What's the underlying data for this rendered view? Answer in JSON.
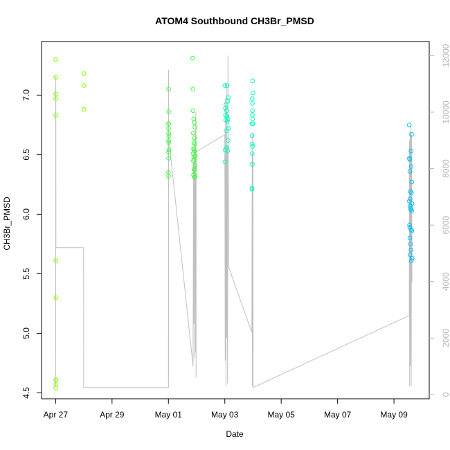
{
  "chart_data": {
    "type": "scatter",
    "title": "ATOM4 Southbound CH3Br_PMSD",
    "xlabel": "Date",
    "ylabel": "CH3Br_PMSD",
    "x_axis": {
      "kind": "date",
      "range": [
        "2016-04-26T12:00",
        "2016-05-10T06:00"
      ],
      "ticks": [
        {
          "value": "2016-04-27",
          "label": "Apr 27"
        },
        {
          "value": "2016-04-29",
          "label": "Apr 29"
        },
        {
          "value": "2016-05-01",
          "label": "May 01"
        },
        {
          "value": "2016-05-03",
          "label": "May 03"
        },
        {
          "value": "2016-05-05",
          "label": "May 05"
        },
        {
          "value": "2016-05-07",
          "label": "May 07"
        },
        {
          "value": "2016-05-09",
          "label": "May 09"
        }
      ]
    },
    "y_axis": {
      "range": [
        4.45,
        7.45
      ],
      "ticks": [
        {
          "value": 4.5,
          "label": "4.5"
        },
        {
          "value": 5.0,
          "label": "5.0"
        },
        {
          "value": 5.5,
          "label": "5.5"
        },
        {
          "value": 6.0,
          "label": "6.0"
        },
        {
          "value": 6.5,
          "label": "6.5"
        },
        {
          "value": 7.0,
          "label": "7.0"
        }
      ]
    },
    "y2_axis": {
      "range": [
        -150,
        12500
      ],
      "color": "#b3b3b3",
      "ticks": [
        {
          "value": 0,
          "label": "0"
        },
        {
          "value": 2000,
          "label": "2000"
        },
        {
          "value": 4000,
          "label": "4000"
        },
        {
          "value": 6000,
          "label": "6000"
        },
        {
          "value": 8000,
          "label": "8000"
        },
        {
          "value": 10000,
          "label": "10000"
        },
        {
          "value": 12000,
          "label": "12000"
        }
      ]
    },
    "grid": false,
    "series": [
      {
        "kind": "points",
        "colors": [
          "#80ff00",
          "#40ff40",
          "#00ffbf",
          "#00bfff"
        ],
        "points": [
          [
            "2016-04-27T00:05",
            7.3
          ],
          [
            "2016-04-27T00:03",
            7.15
          ],
          [
            "2016-04-27T00:06",
            7.01
          ],
          [
            "2016-04-27T00:08",
            6.97
          ],
          [
            "2016-04-27T00:04",
            6.83
          ],
          [
            "2016-04-27T00:09",
            5.61
          ],
          [
            "2016-04-27T00:12",
            5.3
          ],
          [
            "2016-04-27T00:06",
            4.61
          ],
          [
            "2016-04-27T00:11",
            4.61
          ],
          [
            "2016-04-27T00:09",
            4.57
          ],
          [
            "2016-04-27T00:07",
            4.54
          ],
          [
            "2016-04-27T23:55",
            7.18
          ],
          [
            "2016-04-27T23:52",
            7.08
          ],
          [
            "2016-04-27T23:57",
            6.88
          ],
          [
            "2016-05-01T00:10",
            7.05
          ],
          [
            "2016-05-01T00:12",
            6.86
          ],
          [
            "2016-05-01T00:05",
            6.76
          ],
          [
            "2016-05-01T00:14",
            6.76
          ],
          [
            "2016-05-01T00:08",
            6.72
          ],
          [
            "2016-05-01T00:16",
            6.68
          ],
          [
            "2016-05-01T00:18",
            6.66
          ],
          [
            "2016-05-01T00:07",
            6.62
          ],
          [
            "2016-05-01T00:15",
            6.6
          ],
          [
            "2016-05-01T00:17",
            6.54
          ],
          [
            "2016-05-01T00:09",
            6.52
          ],
          [
            "2016-05-01T00:13",
            6.47
          ],
          [
            "2016-05-01T00:06",
            6.35
          ],
          [
            "2016-05-01T00:08",
            6.32
          ],
          [
            "2016-05-01T20:40",
            7.31
          ],
          [
            "2016-05-01T20:50",
            7.05
          ],
          [
            "2016-05-01T21:00",
            6.87
          ],
          [
            "2016-05-01T21:30",
            6.8
          ],
          [
            "2016-05-01T22:00",
            6.77
          ],
          [
            "2016-05-01T22:30",
            6.73
          ],
          [
            "2016-05-01T21:10",
            6.68
          ],
          [
            "2016-05-01T22:10",
            6.64
          ],
          [
            "2016-05-01T21:40",
            6.6
          ],
          [
            "2016-05-01T22:40",
            6.59
          ],
          [
            "2016-05-01T21:20",
            6.55
          ],
          [
            "2016-05-01T21:50",
            6.54
          ],
          [
            "2016-05-01T22:20",
            6.53
          ],
          [
            "2016-05-01T21:05",
            6.51
          ],
          [
            "2016-05-01T22:50",
            6.49
          ],
          [
            "2016-05-01T21:35",
            6.48
          ],
          [
            "2016-05-01T22:05",
            6.46
          ],
          [
            "2016-05-01T21:15",
            6.45
          ],
          [
            "2016-05-01T22:35",
            6.41
          ],
          [
            "2016-05-01T21:45",
            6.38
          ],
          [
            "2016-05-01T22:15",
            6.37
          ],
          [
            "2016-05-01T21:25",
            6.33
          ],
          [
            "2016-05-01T22:45",
            6.32
          ],
          [
            "2016-05-01T21:55",
            6.31
          ],
          [
            "2016-05-03T00:00",
            7.08
          ],
          [
            "2016-05-03T02:00",
            7.08
          ],
          [
            "2016-05-03T03:00",
            6.98
          ],
          [
            "2016-05-03T02:30",
            6.95
          ],
          [
            "2016-05-03T01:00",
            6.92
          ],
          [
            "2016-05-03T00:30",
            6.89
          ],
          [
            "2016-05-03T01:30",
            6.87
          ],
          [
            "2016-05-03T00:40",
            6.83
          ],
          [
            "2016-05-03T01:50",
            6.82
          ],
          [
            "2016-05-03T02:40",
            6.8
          ],
          [
            "2016-05-03T00:50",
            6.79
          ],
          [
            "2016-05-03T02:10",
            6.78
          ],
          [
            "2016-05-03T03:10",
            6.72
          ],
          [
            "2016-05-03T01:10",
            6.7
          ],
          [
            "2016-05-03T02:50",
            6.62
          ],
          [
            "2016-05-03T01:40",
            6.56
          ],
          [
            "2016-05-03T00:20",
            6.54
          ],
          [
            "2016-05-03T02:20",
            6.53
          ],
          [
            "2016-05-03T00:10",
            6.44
          ],
          [
            "2016-05-03T23:40",
            7.12
          ],
          [
            "2016-05-03T23:50",
            7.02
          ],
          [
            "2016-05-03T23:20",
            6.97
          ],
          [
            "2016-05-03T23:30",
            6.93
          ],
          [
            "2016-05-03T23:35",
            6.87
          ],
          [
            "2016-05-03T23:25",
            6.83
          ],
          [
            "2016-05-03T23:45",
            6.8
          ],
          [
            "2016-05-03T23:15",
            6.76
          ],
          [
            "2016-05-03T23:55",
            6.76
          ],
          [
            "2016-05-03T23:10",
            6.66
          ],
          [
            "2016-05-03T23:22",
            6.59
          ],
          [
            "2016-05-03T23:38",
            6.57
          ],
          [
            "2016-05-03T23:18",
            6.51
          ],
          [
            "2016-05-03T23:28",
            6.42
          ],
          [
            "2016-05-03T23:08",
            6.22
          ],
          [
            "2016-05-03T23:12",
            6.21
          ],
          [
            "2016-05-09T13:00",
            6.75
          ],
          [
            "2016-05-09T15:00",
            6.67
          ],
          [
            "2016-05-09T14:30",
            6.53
          ],
          [
            "2016-05-09T13:10",
            6.47
          ],
          [
            "2016-05-09T13:20",
            6.46
          ],
          [
            "2016-05-09T14:40",
            6.4
          ],
          [
            "2016-05-09T13:30",
            6.36
          ],
          [
            "2016-05-09T15:10",
            6.27
          ],
          [
            "2016-05-09T14:00",
            6.19
          ],
          [
            "2016-05-09T14:50",
            6.18
          ],
          [
            "2016-05-09T13:40",
            6.13
          ],
          [
            "2016-05-09T13:05",
            6.11
          ],
          [
            "2016-05-09T15:20",
            6.09
          ],
          [
            "2016-05-09T13:50",
            6.07
          ],
          [
            "2016-05-09T14:10",
            6.05
          ],
          [
            "2016-05-09T14:20",
            6.04
          ],
          [
            "2016-05-09T15:05",
            6.03
          ],
          [
            "2016-05-09T13:15",
            5.91
          ],
          [
            "2016-05-09T13:25",
            5.89
          ],
          [
            "2016-05-09T14:35",
            5.87
          ],
          [
            "2016-05-09T15:15",
            5.86
          ],
          [
            "2016-05-09T13:35",
            5.8
          ],
          [
            "2016-05-09T14:05",
            5.75
          ],
          [
            "2016-05-09T14:25",
            5.7
          ],
          [
            "2016-05-09T13:45",
            5.66
          ],
          [
            "2016-05-09T15:25",
            5.63
          ],
          [
            "2016-05-09T14:45",
            5.61
          ]
        ]
      },
      {
        "kind": "line",
        "axis": "y2",
        "color": "#c0c0c0",
        "points": [
          [
            "2016-04-27T00:00",
            300
          ],
          [
            "2016-04-27T00:02",
            11000
          ],
          [
            "2016-04-27T00:04",
            1500
          ],
          [
            "2016-04-27T00:06",
            10500
          ],
          [
            "2016-04-27T00:08",
            5200
          ],
          [
            "2016-04-27T00:10",
            11300
          ],
          [
            "2016-04-27T00:12",
            9800
          ],
          [
            "2016-04-27T00:14",
            5200
          ],
          [
            "2016-04-27T23:50",
            5200
          ],
          [
            "2016-04-27T23:55",
            250
          ],
          [
            "2016-05-01T00:00",
            250
          ],
          [
            "2016-05-01T00:02",
            1400
          ],
          [
            "2016-05-01T00:04",
            11000
          ],
          [
            "2016-05-01T00:06",
            300
          ],
          [
            "2016-05-01T00:08",
            11500
          ],
          [
            "2016-05-01T00:10",
            600
          ],
          [
            "2016-05-01T00:12",
            10200
          ],
          [
            "2016-05-01T00:14",
            9100
          ],
          [
            "2016-05-01T21:00",
            1000
          ],
          [
            "2016-05-01T21:20",
            8200
          ],
          [
            "2016-05-01T21:40",
            2500
          ],
          [
            "2016-05-01T22:00",
            8700
          ],
          [
            "2016-05-01T22:20",
            1300
          ],
          [
            "2016-05-01T22:40",
            8000
          ],
          [
            "2016-05-01T23:00",
            9400
          ],
          [
            "2016-05-01T23:10",
            1500
          ],
          [
            "2016-05-01T23:20",
            10000
          ],
          [
            "2016-05-01T23:30",
            600
          ],
          [
            "2016-05-01T23:40",
            8600
          ],
          [
            "2016-05-03T00:00",
            9200
          ],
          [
            "2016-05-03T00:20",
            1200
          ],
          [
            "2016-05-03T00:40",
            10500
          ],
          [
            "2016-05-03T01:00",
            300
          ],
          [
            "2016-05-03T01:20",
            11000
          ],
          [
            "2016-05-03T01:40",
            2000
          ],
          [
            "2016-05-03T02:00",
            8800
          ],
          [
            "2016-05-03T02:20",
            400
          ],
          [
            "2016-05-03T02:40",
            12000
          ],
          [
            "2016-05-03T03:00",
            8000
          ],
          [
            "2016-05-03T03:20",
            4500
          ],
          [
            "2016-05-03T23:00",
            2200
          ],
          [
            "2016-05-03T23:20",
            8500
          ],
          [
            "2016-05-03T23:30",
            300
          ],
          [
            "2016-05-03T23:40",
            9300
          ],
          [
            "2016-05-03T23:50",
            1500
          ],
          [
            "2016-05-04T00:00",
            8600
          ],
          [
            "2016-05-04T00:05",
            250
          ],
          [
            "2016-05-09T13:00",
            2800
          ],
          [
            "2016-05-09T13:10",
            9000
          ],
          [
            "2016-05-09T13:20",
            300
          ],
          [
            "2016-05-09T13:40",
            9300
          ],
          [
            "2016-05-09T14:00",
            1000
          ],
          [
            "2016-05-09T14:20",
            9500
          ],
          [
            "2016-05-09T14:40",
            300
          ],
          [
            "2016-05-09T15:00",
            9200
          ],
          [
            "2016-05-09T15:20",
            4000
          ]
        ]
      }
    ]
  }
}
